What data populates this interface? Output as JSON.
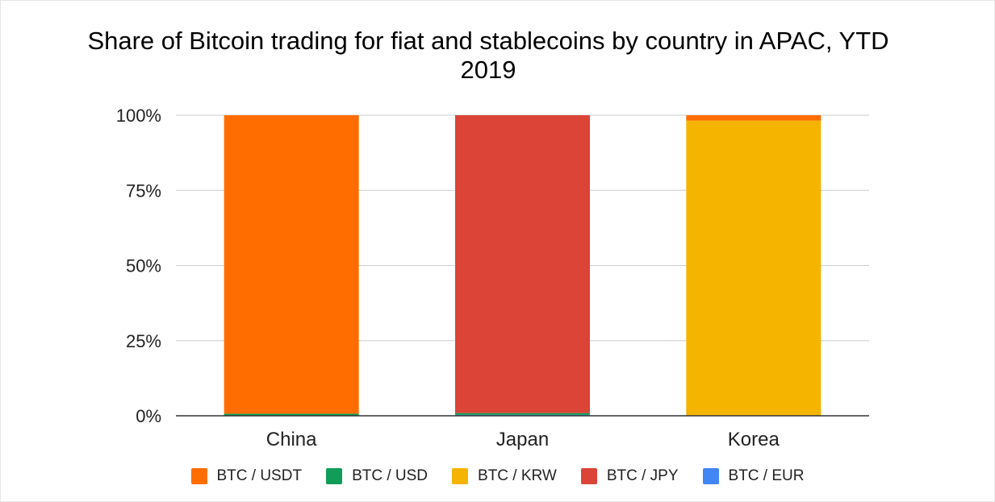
{
  "chart_data": {
    "type": "bar",
    "stacked": true,
    "title": "Share of Bitcoin trading for fiat and stablecoins by country in APAC, YTD 2019",
    "xlabel": "",
    "ylabel": "",
    "categories": [
      "China",
      "Japan",
      "Korea"
    ],
    "ylim": [
      0,
      100
    ],
    "yticks": [
      "0%",
      "25%",
      "50%",
      "75%",
      "100%"
    ],
    "ytick_values": [
      0,
      25,
      50,
      75,
      100
    ],
    "grid": true,
    "legend_position": "bottom",
    "series": [
      {
        "name": "BTC / EUR",
        "color": "#4285f4",
        "values": [
          0,
          0.3,
          0
        ]
      },
      {
        "name": "BTC / USD",
        "color": "#0f9d58",
        "values": [
          0.7,
          0.6,
          0
        ]
      },
      {
        "name": "BTC / KRW",
        "color": "#f4b400",
        "values": [
          0,
          0,
          98.2
        ]
      },
      {
        "name": "BTC / JPY",
        "color": "#db4437",
        "values": [
          0,
          99.1,
          0
        ]
      },
      {
        "name": "BTC / USDT",
        "color": "#ff6d00",
        "values": [
          99.3,
          0,
          1.8
        ]
      }
    ],
    "legend": [
      {
        "name": "BTC / USDT",
        "color": "#ff6d00"
      },
      {
        "name": "BTC / USD",
        "color": "#0f9d58"
      },
      {
        "name": "BTC / KRW",
        "color": "#f4b400"
      },
      {
        "name": "BTC / JPY",
        "color": "#db4437"
      },
      {
        "name": "BTC / EUR",
        "color": "#4285f4"
      }
    ]
  }
}
